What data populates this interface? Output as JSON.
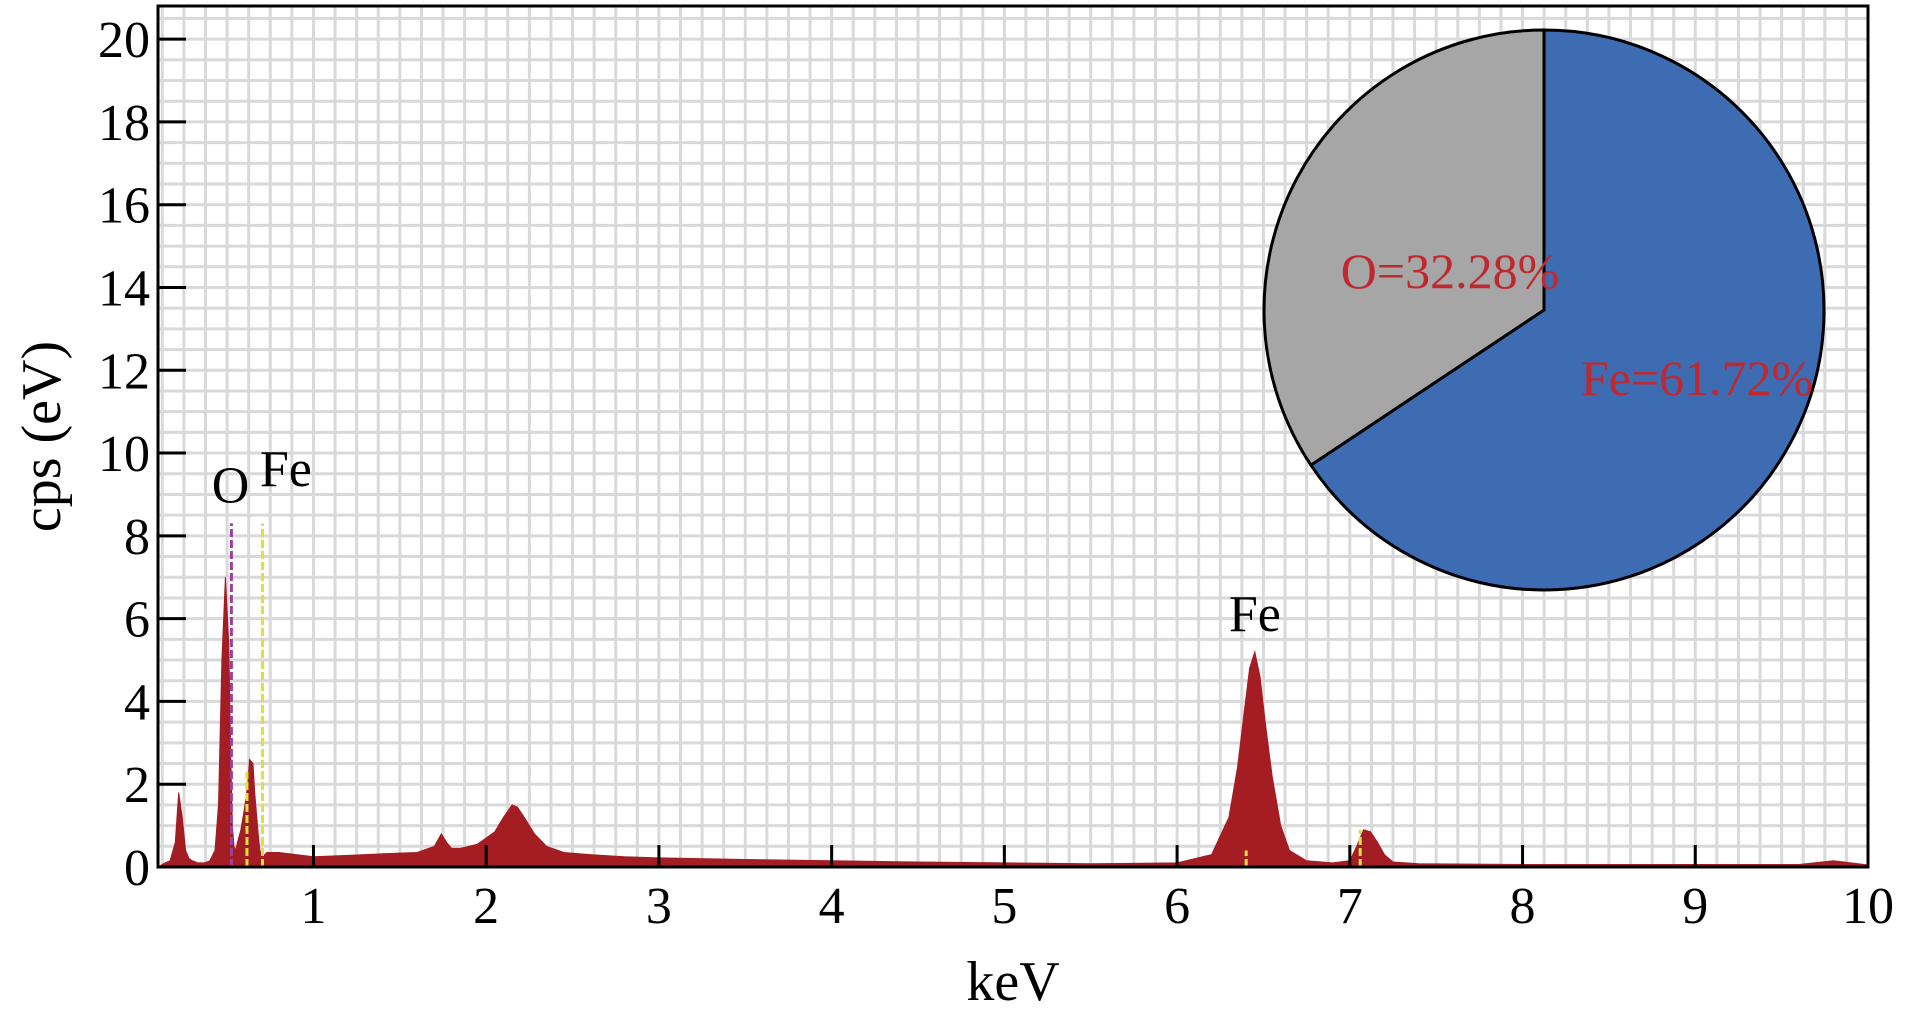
{
  "colors": {
    "spectrum_fill": "#a31d22",
    "grid": "#d9d9d9",
    "o_marker": "#9b3fa0",
    "fe_marker": "#e0e03a",
    "pie_fe": "#3d6cb3",
    "pie_o": "#a6a6a6",
    "pie_label": "#c0282d"
  },
  "chart_data": [
    {
      "type": "area",
      "title": "",
      "xlabel": "keV",
      "ylabel": "cps (eV)",
      "xlim": [
        0.1,
        10
      ],
      "ylim": [
        0,
        20.8
      ],
      "x_ticks": [
        1,
        2,
        3,
        4,
        5,
        6,
        7,
        8,
        9,
        10
      ],
      "y_ticks": [
        0,
        2,
        4,
        6,
        8,
        10,
        12,
        14,
        16,
        18,
        20
      ],
      "grid": true,
      "series": [
        {
          "x": [
            0.1,
            0.14,
            0.17,
            0.2,
            0.22,
            0.24,
            0.26,
            0.28,
            0.3,
            0.33,
            0.37,
            0.4,
            0.43,
            0.45,
            0.47,
            0.49,
            0.51,
            0.52,
            0.53,
            0.54,
            0.55,
            0.56,
            0.58,
            0.6,
            0.62,
            0.63,
            0.65,
            0.66,
            0.68,
            0.69,
            0.7,
            0.71,
            0.72,
            0.73,
            0.75,
            0.8,
            0.9,
            1.0,
            1.2,
            1.4,
            1.6,
            1.7,
            1.74,
            1.77,
            1.8,
            1.85,
            1.95,
            2.05,
            2.1,
            2.15,
            2.18,
            2.22,
            2.28,
            2.35,
            2.45,
            2.6,
            2.8,
            3.0,
            3.5,
            4.0,
            4.5,
            5.0,
            5.5,
            6.0,
            6.2,
            6.3,
            6.35,
            6.39,
            6.42,
            6.45,
            6.48,
            6.51,
            6.55,
            6.6,
            6.65,
            6.75,
            6.9,
            7.0,
            7.04,
            7.08,
            7.12,
            7.16,
            7.2,
            7.25,
            7.4,
            8.0,
            9.0,
            9.6,
            9.8,
            10.0
          ],
          "y": [
            0.0,
            0.1,
            0.15,
            0.6,
            1.8,
            1.2,
            0.4,
            0.2,
            0.15,
            0.1,
            0.1,
            0.15,
            0.4,
            1.5,
            5.0,
            7.0,
            5.4,
            3.0,
            1.0,
            0.5,
            0.4,
            0.6,
            0.9,
            1.4,
            2.0,
            2.6,
            2.5,
            1.8,
            0.8,
            0.4,
            0.3,
            0.3,
            0.3,
            0.35,
            0.35,
            0.35,
            0.3,
            0.25,
            0.28,
            0.32,
            0.35,
            0.5,
            0.8,
            0.6,
            0.45,
            0.45,
            0.55,
            0.85,
            1.2,
            1.5,
            1.45,
            1.2,
            0.8,
            0.5,
            0.35,
            0.3,
            0.25,
            0.22,
            0.18,
            0.15,
            0.12,
            0.1,
            0.08,
            0.1,
            0.3,
            1.2,
            2.4,
            3.8,
            4.8,
            5.2,
            4.6,
            3.5,
            2.2,
            1.0,
            0.4,
            0.15,
            0.1,
            0.15,
            0.5,
            0.9,
            0.85,
            0.6,
            0.3,
            0.12,
            0.08,
            0.06,
            0.06,
            0.06,
            0.15,
            0.05
          ]
        }
      ],
      "markers": [
        {
          "element": "O",
          "x": 0.525,
          "height": 8.3,
          "color": "o_marker"
        },
        {
          "element": "Fe",
          "x": 0.705,
          "height": 8.3,
          "color": "fe_marker"
        },
        {
          "element": "Fe",
          "x": 0.615,
          "height": 2.3,
          "color": "fe_marker"
        },
        {
          "element": "Fe",
          "x": 6.4,
          "height": 0.4,
          "color": "fe_marker"
        },
        {
          "element": "Fe",
          "x": 7.06,
          "height": 0.9,
          "color": "fe_marker"
        }
      ],
      "annotations": [
        {
          "text": "O",
          "x": 0.52,
          "y": 8.8
        },
        {
          "text": "Fe",
          "x": 0.84,
          "y": 9.2
        },
        {
          "text": "Fe",
          "x": 6.45,
          "y": 5.7
        }
      ]
    },
    {
      "type": "pie",
      "slices": [
        {
          "label": "Fe=61.72%",
          "value": 61.72,
          "color": "pie_fe"
        },
        {
          "label": "O=32.28%",
          "value": 32.28,
          "color": "pie_o"
        }
      ]
    }
  ]
}
